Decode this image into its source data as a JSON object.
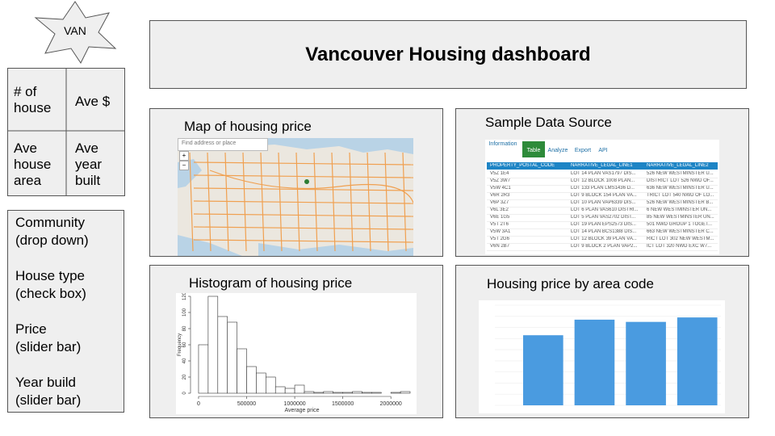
{
  "logo": {
    "label": "VAN"
  },
  "stats": {
    "num_houses": "# of\nhouse",
    "ave_price": "Ave $",
    "ave_area": "Ave\nhouse\narea",
    "ave_year": "Ave\nyear\nbuilt"
  },
  "controls": [
    {
      "label": "Community\n(drop down)"
    },
    {
      "label": "House type\n(check box)"
    },
    {
      "label": "Price\n(slider bar)"
    },
    {
      "label": "Year build\n(slider bar)"
    }
  ],
  "header": {
    "title": "Vancouver Housing dashboard"
  },
  "panels": {
    "map": {
      "title": "Map of housing price",
      "search_label": "Find address or place"
    },
    "source": {
      "title": "Sample Data Source",
      "tabs": [
        "Information",
        "Table",
        "Analyze",
        "Export",
        "API"
      ],
      "active_tab": "Table",
      "columns": [
        "PROPERTY_POSTAL_CODE",
        "NARRATIVE_LEGAL_LINE1",
        "NARRATIVE_LEGAL_LINE2"
      ],
      "rows": [
        [
          "V5Z 1E4",
          "LOT 14 PLAN VAS1797 DIS...",
          "526 NEW WESTMINSTER U..."
        ],
        [
          "V5Z 3W7",
          "LOT 12 BLOCK 1008 PLAN...",
          "DISTRICT LOT 526 NWD OF..."
        ],
        [
          "V5W 4C1",
          "LOT 133 PLAN LMS1436 D...",
          "636 NEW WESTMINSTER U..."
        ],
        [
          "V6R 2R3",
          "LOT 9 BLOCK 154 PLAN VA...",
          "TRICT LOT 540 NWD OF LO..."
        ],
        [
          "V6P 3Z7",
          "LOT 10 PLAN VAP6339 DIS...",
          "526 NEW WESTMINSTER B..."
        ],
        [
          "V6L 3E2",
          "LOT 6 PLAN VAS610 DISTRI...",
          "6 NEW WESTMINSTER UN..."
        ],
        [
          "V6E 1G5",
          "LOT 5 PLAN VAS2702 DIST...",
          "85 NEW WESTMINSTER UN..."
        ],
        [
          "V5T 2T6",
          "LOT 19 PLAN EPS2573 DIS...",
          "501 NWD GROUP 1 TOGET..."
        ],
        [
          "V5W 3A1",
          "LOT 14 PLAN BCS1388 DIS...",
          "663 NEW WESTMINSTER C..."
        ],
        [
          "V5T 2G6",
          "LOT 12 BLOCK 39 PLAN VA...",
          "RICT LOT 302 NEW WESTM..."
        ],
        [
          "V6N 2B7",
          "LOT 9 BLOCK 2 PLAN VAP2...",
          "ICT LOT 320 NWD EXC W7..."
        ]
      ]
    },
    "histogram": {
      "title": "Histogram of housing price"
    },
    "area_code": {
      "title": "Housing price by area code"
    }
  },
  "chart_data": [
    {
      "type": "bar",
      "title": "Histogram of housing price",
      "xlabel": "Average price",
      "ylabel": "Frequency",
      "x_ticks": [
        "0",
        "500000",
        "1000000",
        "1500000",
        "2000000"
      ],
      "y_ticks": [
        "0",
        "20",
        "40",
        "60",
        "80",
        "100",
        "120"
      ],
      "xlim": [
        -50000,
        2200000
      ],
      "ylim": [
        0,
        120
      ],
      "bin_width": 100000,
      "bin_starts": [
        0,
        100000,
        200000,
        300000,
        400000,
        500000,
        600000,
        700000,
        800000,
        900000,
        1000000,
        1100000,
        1200000,
        1300000,
        1400000,
        1500000,
        1600000,
        1700000,
        1800000,
        1900000,
        2000000,
        2100000
      ],
      "values": [
        60,
        120,
        95,
        88,
        55,
        33,
        25,
        20,
        8,
        6,
        10,
        2,
        1,
        2,
        1,
        1,
        2,
        1,
        1,
        0,
        1,
        2
      ]
    },
    {
      "type": "bar",
      "title": "Housing price by area code",
      "categories": [
        "",
        "",
        "",
        ""
      ],
      "values": [
        63,
        77,
        75,
        79
      ],
      "ylim": [
        0,
        90
      ],
      "color": "#4a9be0"
    }
  ]
}
